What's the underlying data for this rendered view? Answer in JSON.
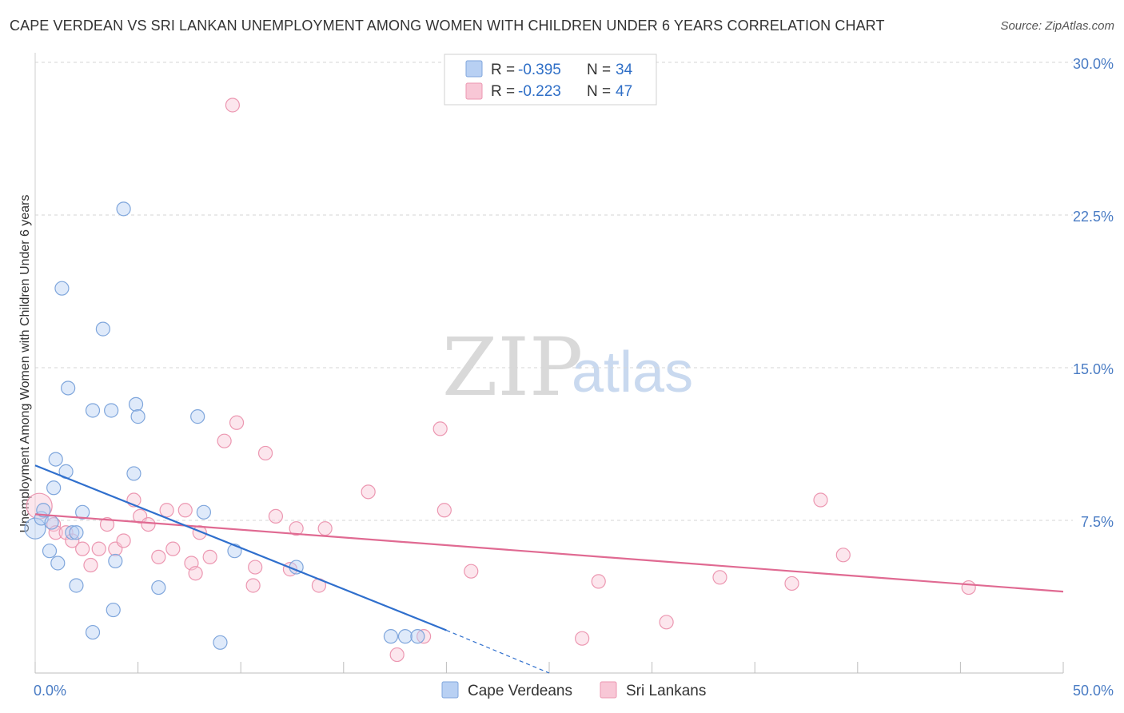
{
  "title": "CAPE VERDEAN VS SRI LANKAN UNEMPLOYMENT AMONG WOMEN WITH CHILDREN UNDER 6 YEARS CORRELATION CHART",
  "source": "Source: ZipAtlas.com",
  "watermark": {
    "zip": "ZIP",
    "atlas": "atlas"
  },
  "legend": {
    "items": [
      {
        "r_label": "R =",
        "r_value": "-0.395",
        "n_label": "N =",
        "n_value": "34"
      },
      {
        "r_label": "R =",
        "r_value": "-0.223",
        "n_label": "N =",
        "n_value": "47"
      }
    ]
  },
  "colors": {
    "blue_fill": "#b8d0f3",
    "blue_stroke": "#7fa6dc",
    "blue_line": "#2f6fcd",
    "pink_fill": "#f8c7d6",
    "pink_stroke": "#ec97b1",
    "pink_line": "#e06a92",
    "grid": "#d6d6d6"
  },
  "chart_data": {
    "type": "scatter",
    "title": "CAPE VERDEAN VS SRI LANKAN UNEMPLOYMENT AMONG WOMEN WITH CHILDREN UNDER 6 YEARS CORRELATION CHART",
    "xlabel": "",
    "ylabel": "Unemployment Among Women with Children Under 6 years",
    "xlim": [
      0,
      50
    ],
    "ylim": [
      0,
      30
    ],
    "x_tick_labels": [
      "0.0%",
      "50.0%"
    ],
    "y_ticks": [
      7.5,
      15.0,
      22.5,
      30.0
    ],
    "y_tick_labels": [
      "7.5%",
      "15.0%",
      "22.5%",
      "30.0%"
    ],
    "legend_position": "top-center",
    "series": [
      {
        "name": "Cape Verdeans",
        "r": -0.395,
        "n": 34,
        "points": [
          [
            0.0,
            7.1
          ],
          [
            0.3,
            7.6
          ],
          [
            0.4,
            8.0
          ],
          [
            0.7,
            6.0
          ],
          [
            0.8,
            7.4
          ],
          [
            0.9,
            9.1
          ],
          [
            1.0,
            10.5
          ],
          [
            1.1,
            5.4
          ],
          [
            1.5,
            9.9
          ],
          [
            1.6,
            14.0
          ],
          [
            1.3,
            18.9
          ],
          [
            1.8,
            6.9
          ],
          [
            2.0,
            4.3
          ],
          [
            2.0,
            6.9
          ],
          [
            2.3,
            7.9
          ],
          [
            2.8,
            12.9
          ],
          [
            2.8,
            2.0
          ],
          [
            3.3,
            16.9
          ],
          [
            3.7,
            12.9
          ],
          [
            3.8,
            3.1
          ],
          [
            3.9,
            5.5
          ],
          [
            4.3,
            22.8
          ],
          [
            4.8,
            9.8
          ],
          [
            4.9,
            13.2
          ],
          [
            5.0,
            12.6
          ],
          [
            6.0,
            4.2
          ],
          [
            7.9,
            12.6
          ],
          [
            8.2,
            7.9
          ],
          [
            9.0,
            1.5
          ],
          [
            9.7,
            6.0
          ],
          [
            12.7,
            5.2
          ],
          [
            17.3,
            1.8
          ],
          [
            18.0,
            1.8
          ],
          [
            18.6,
            1.8
          ]
        ]
      },
      {
        "name": "Sri Lankans",
        "r": -0.223,
        "n": 47,
        "points": [
          [
            0.2,
            8.2
          ],
          [
            0.9,
            7.3
          ],
          [
            1.0,
            6.9
          ],
          [
            1.5,
            6.9
          ],
          [
            1.8,
            6.5
          ],
          [
            2.3,
            6.1
          ],
          [
            2.7,
            5.3
          ],
          [
            3.1,
            6.1
          ],
          [
            3.5,
            7.3
          ],
          [
            3.9,
            6.1
          ],
          [
            4.3,
            6.5
          ],
          [
            4.8,
            8.5
          ],
          [
            5.1,
            7.7
          ],
          [
            5.5,
            7.3
          ],
          [
            6.0,
            5.7
          ],
          [
            6.4,
            8.0
          ],
          [
            6.7,
            6.1
          ],
          [
            7.3,
            8.0
          ],
          [
            7.6,
            5.4
          ],
          [
            7.8,
            4.9
          ],
          [
            8.0,
            6.9
          ],
          [
            8.5,
            5.7
          ],
          [
            9.2,
            11.4
          ],
          [
            9.6,
            27.9
          ],
          [
            9.8,
            12.3
          ],
          [
            10.6,
            4.3
          ],
          [
            10.7,
            5.2
          ],
          [
            11.2,
            10.8
          ],
          [
            11.7,
            7.7
          ],
          [
            12.4,
            5.1
          ],
          [
            12.7,
            7.1
          ],
          [
            13.8,
            4.3
          ],
          [
            14.1,
            7.1
          ],
          [
            16.2,
            8.9
          ],
          [
            17.6,
            0.9
          ],
          [
            18.9,
            1.8
          ],
          [
            19.7,
            12.0
          ],
          [
            19.9,
            8.0
          ],
          [
            21.2,
            5.0
          ],
          [
            26.6,
            1.7
          ],
          [
            27.4,
            4.5
          ],
          [
            30.7,
            2.5
          ],
          [
            33.3,
            4.7
          ],
          [
            36.8,
            4.4
          ],
          [
            38.2,
            8.5
          ],
          [
            39.3,
            5.8
          ],
          [
            45.4,
            4.2
          ]
        ]
      }
    ],
    "trendlines": [
      {
        "series": "Cape Verdeans",
        "from": [
          0.0,
          10.2
        ],
        "to": [
          20.0,
          2.1
        ],
        "dashed_to": [
          25.0,
          0.0
        ]
      },
      {
        "series": "Sri Lankans",
        "from": [
          0.0,
          7.8
        ],
        "to": [
          50.0,
          4.0
        ]
      }
    ]
  }
}
